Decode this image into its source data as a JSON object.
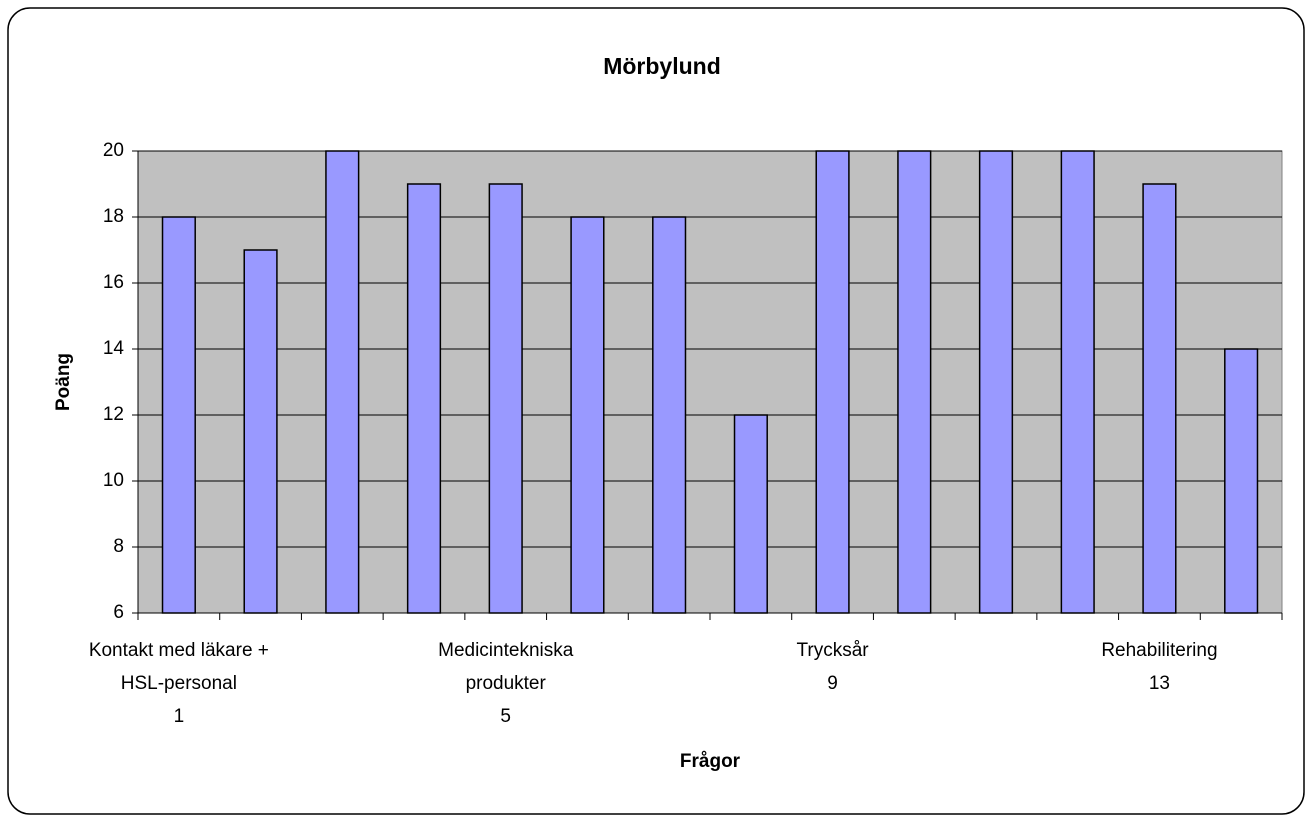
{
  "chart_data": {
    "type": "bar",
    "title": "Mörbylund",
    "x_label": "Frågor",
    "y_label": "Poäng",
    "categories": [
      "Kontakt med läkare +\nHSL-personal\n1",
      null,
      null,
      null,
      "Medicintekniska\nprodukter\n5",
      null,
      null,
      null,
      "Trycksår\n9",
      null,
      null,
      null,
      "Rehabilitering\n13",
      null
    ],
    "values": [
      18,
      17,
      20,
      19,
      19,
      18,
      18,
      12,
      20,
      20,
      20,
      20,
      19,
      14
    ],
    "color": "#9999ff",
    "plot_background": "#c0c0c0",
    "ylim": [
      6,
      20
    ],
    "yticks": [
      6,
      8,
      10,
      12,
      14,
      16,
      18,
      20
    ],
    "grid": true
  }
}
